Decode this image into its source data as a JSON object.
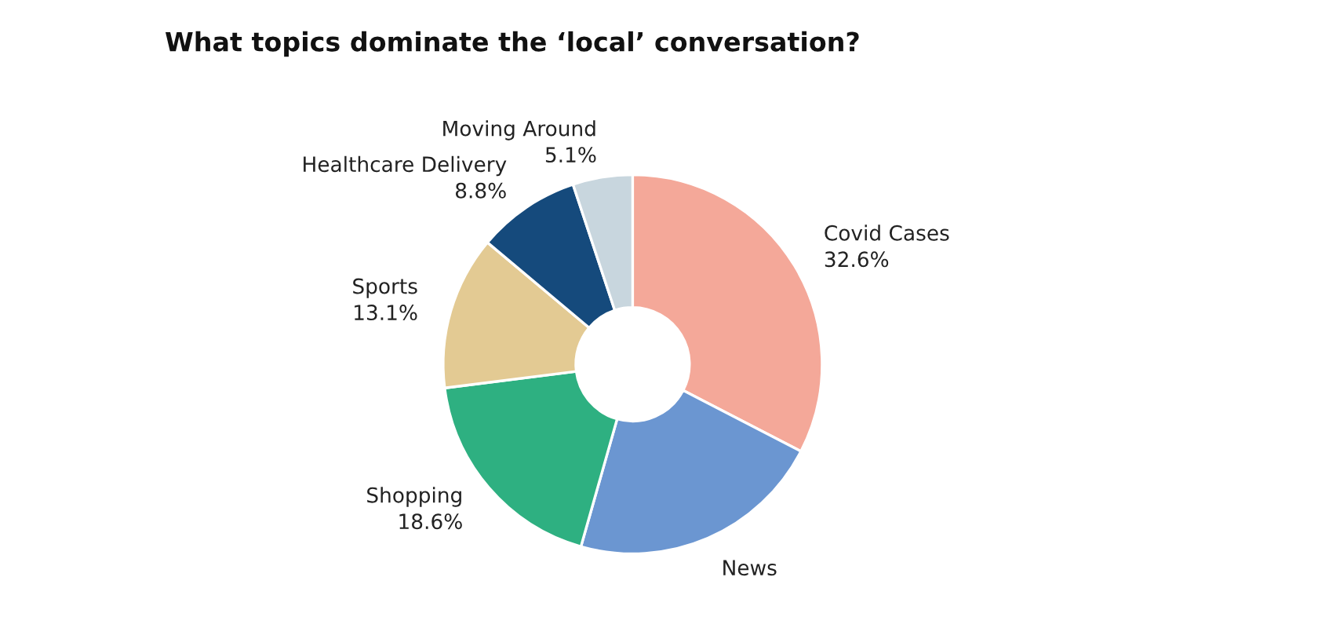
{
  "chart_data": {
    "type": "donut",
    "title": "What topics dominate the ‘local’ conversation?",
    "categories": [
      "Covid Cases",
      "News",
      "Shopping",
      "Sports",
      "Healthcare Delivery",
      "Moving Around"
    ],
    "values": [
      32.6,
      21.8,
      18.6,
      13.1,
      8.8,
      5.1
    ],
    "value_labels": [
      "32.6%",
      null,
      "18.6%",
      "13.1%",
      "8.8%",
      "5.1%"
    ],
    "colors": [
      "#f4a899",
      "#6b96d1",
      "#2eb081",
      "#e3ca93",
      "#154a7c",
      "#c8d6de"
    ],
    "legend": false
  }
}
